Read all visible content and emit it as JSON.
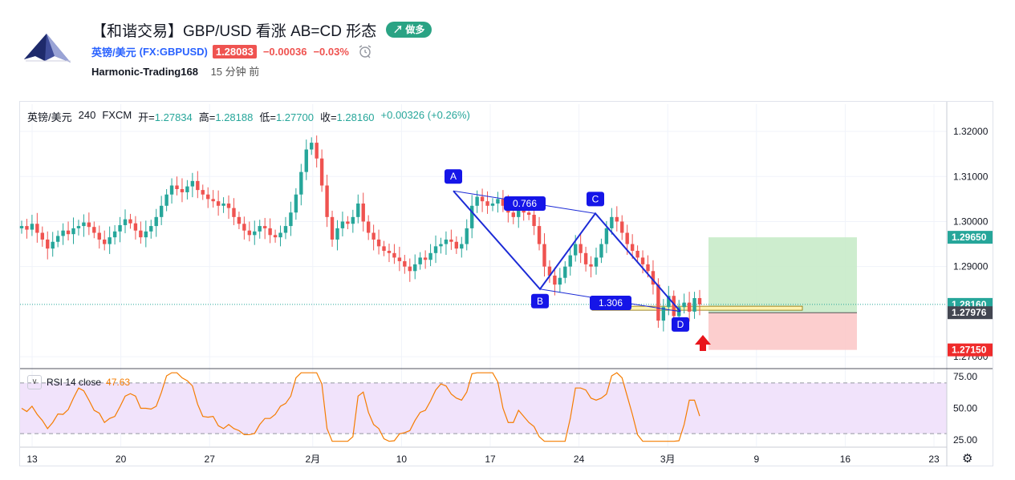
{
  "header": {
    "title": "【和谐交易】GBP/USD 看涨 AB=CD 形态",
    "direction_badge": "↗ 做多",
    "symbol_name": "英镑/美元",
    "symbol_code": "(FX:GBPUSD)",
    "price": "1.28083",
    "change": "−0.00036",
    "change_pct": "−0.03%",
    "author": "Harmonic-Trading168",
    "time_ago": "15 分钟 前"
  },
  "legend": {
    "symbol": "英镑/美元",
    "interval": "240",
    "exchange": "FXCM",
    "open_label": "开=",
    "open": "1.27834",
    "high_label": "高=",
    "high": "1.28188",
    "low_label": "低=",
    "low": "1.27700",
    "close_label": "收=",
    "close": "1.28160",
    "change": "+0.00326 (+0.26%)"
  },
  "rsi": {
    "toggle": "∨",
    "label": "RSI 14 close",
    "value": "47.63",
    "upper": 70,
    "lower": 30
  },
  "colors": {
    "up": "#26a69a",
    "down": "#ef5350",
    "pattern": "#1c2bd6",
    "target_zone": "#c8ebc9",
    "stop_zone": "#fcc9c9",
    "rsi_line": "#f57c00",
    "rsi_band": "#f1e3fb"
  },
  "chart_data": {
    "type": "candlestick",
    "price_axis_ticks": [
      "1.32000",
      "1.31000",
      "1.30000",
      "1.29000",
      "1.27000"
    ],
    "price_tags": [
      {
        "label": "1.29650",
        "price": 1.2965,
        "color": "#26a69a"
      },
      {
        "label": "1.28160",
        "price": 1.2816,
        "color": "#26a69a"
      },
      {
        "label": "1.27976",
        "price": 1.27976,
        "color": "#434651"
      },
      {
        "label": "1.27150",
        "price": 1.2715,
        "color": "#ef2b2b"
      }
    ],
    "rsi_axis_ticks": [
      "75.00",
      "50.00",
      "25.00"
    ],
    "time_axis_labels": [
      "13",
      "20",
      "27",
      "2月",
      "10",
      "17",
      "24",
      "3月",
      "9",
      "16",
      "23"
    ],
    "pattern": {
      "name": "AB=CD",
      "points": [
        {
          "label": "A",
          "price": 1.3068
        },
        {
          "label": "B",
          "price": 1.285
        },
        {
          "label": "C",
          "price": 1.3018
        },
        {
          "label": "D",
          "price": 1.28
        }
      ],
      "ratios": [
        "0.766",
        "1.306"
      ]
    },
    "position": {
      "side": "long",
      "entry": 1.27976,
      "target": 1.2965,
      "stop": 1.2715
    },
    "closes": [
      1.299,
      1.2982,
      1.2995,
      1.2975,
      1.296,
      1.294,
      1.2955,
      1.2968,
      1.298,
      1.2972,
      1.2985,
      1.299,
      1.2998,
      1.2988,
      1.2975,
      1.296,
      1.295,
      1.2965,
      1.2978,
      1.2992,
      1.3005,
      1.2996,
      1.298,
      1.2965,
      1.2978,
      1.299,
      1.301,
      1.3035,
      1.306,
      1.308,
      1.3072,
      1.3065,
      1.3078,
      1.309,
      1.307,
      1.306,
      1.305,
      1.3045,
      1.3035,
      1.304,
      1.303,
      1.301,
      1.2995,
      1.298,
      1.297,
      1.2978,
      1.299,
      1.2985,
      1.297,
      1.2965,
      1.2975,
      1.299,
      1.302,
      1.306,
      1.311,
      1.316,
      1.3175,
      1.314,
      1.308,
      1.301,
      1.296,
      1.2985,
      1.3,
      1.2995,
      1.301,
      1.304,
      1.3,
      1.2975,
      1.296,
      1.2945,
      1.2935,
      1.293,
      1.292,
      1.2912,
      1.29,
      1.289,
      1.2905,
      1.292,
      1.2915,
      1.293,
      1.2945,
      1.295,
      1.296,
      1.2955,
      1.294,
      1.295,
      1.2985,
      1.3035,
      1.3055,
      1.3045,
      1.3035,
      1.304,
      1.305,
      1.3035,
      1.302,
      1.301,
      1.303,
      1.302,
      1.3015,
      1.299,
      1.295,
      1.29,
      1.288,
      1.286,
      1.2875,
      1.29,
      1.2925,
      1.295,
      1.293,
      1.2905,
      1.29,
      1.292,
      1.295,
      1.2985,
      1.301,
      1.3,
      1.2975,
      1.295,
      1.2935,
      1.292,
      1.2905,
      1.289,
      1.286,
      1.278,
      1.281,
      1.2835,
      1.279,
      1.281,
      1.282,
      1.28,
      1.283,
      1.2816
    ]
  }
}
